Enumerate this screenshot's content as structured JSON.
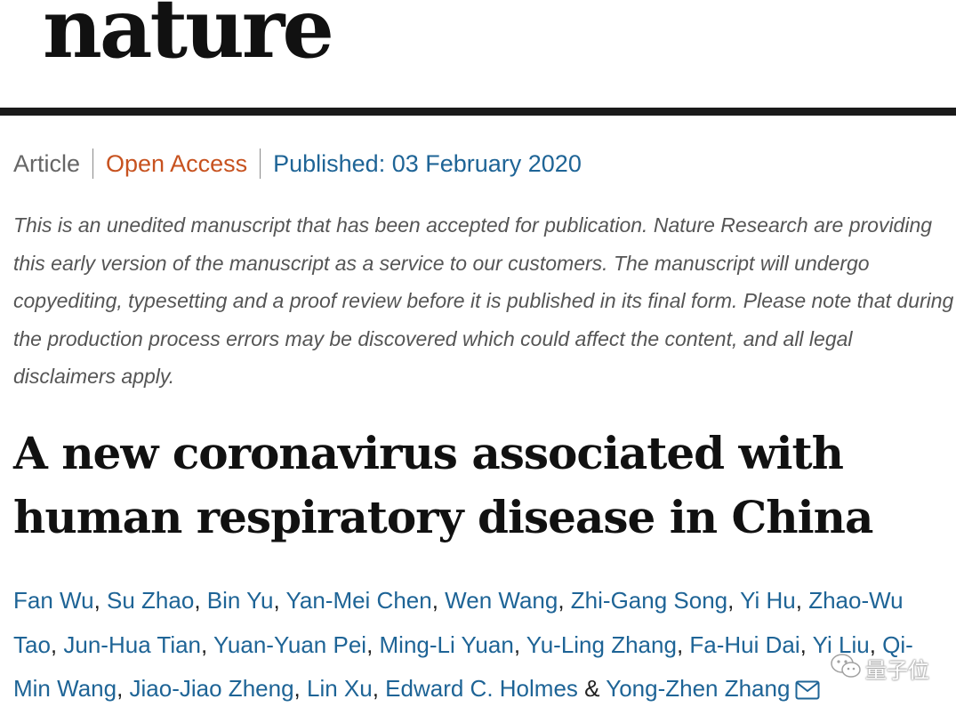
{
  "masthead": "nature",
  "meta": {
    "type": "Article",
    "access": "Open Access",
    "published": "Published: 03 February 2020"
  },
  "disclaimer": "This is an unedited manuscript that has been accepted for publication. Nature Research are providing this early version of the manuscript as a service to our customers. The manuscript will undergo copyediting, typesetting and a proof review before it is published in its final form. Please note that during the production process errors may be discovered which could affect the content, and all legal disclaimers apply.",
  "title": "A new coronavirus associated with human respiratory disease in China",
  "authors": [
    "Fan Wu",
    "Su Zhao",
    "Bin Yu",
    "Yan-Mei Chen",
    "Wen Wang",
    "Zhi-Gang Song",
    "Yi Hu",
    "Zhao-Wu Tao",
    "Jun-Hua Tian",
    "Yuan-Yuan Pei",
    "Ming-Li Yuan",
    "Yu-Ling Zhang",
    "Fa-Hui Dai",
    "Yi Liu",
    "Qi-Min Wang",
    "Jiao-Jiao Zheng",
    "Lin Xu",
    "Edward C. Holmes",
    "Yong-Zhen Zhang"
  ],
  "author_separators": {
    "comma": ", ",
    "ampersand": " & "
  },
  "icons": {
    "corresponding_author": "mail-icon",
    "watermark": "wechat-icon"
  },
  "watermark_text": "量子位",
  "colors": {
    "link": "#1e6496",
    "open_access": "#c7521f",
    "rule": "#1a1a1a"
  }
}
